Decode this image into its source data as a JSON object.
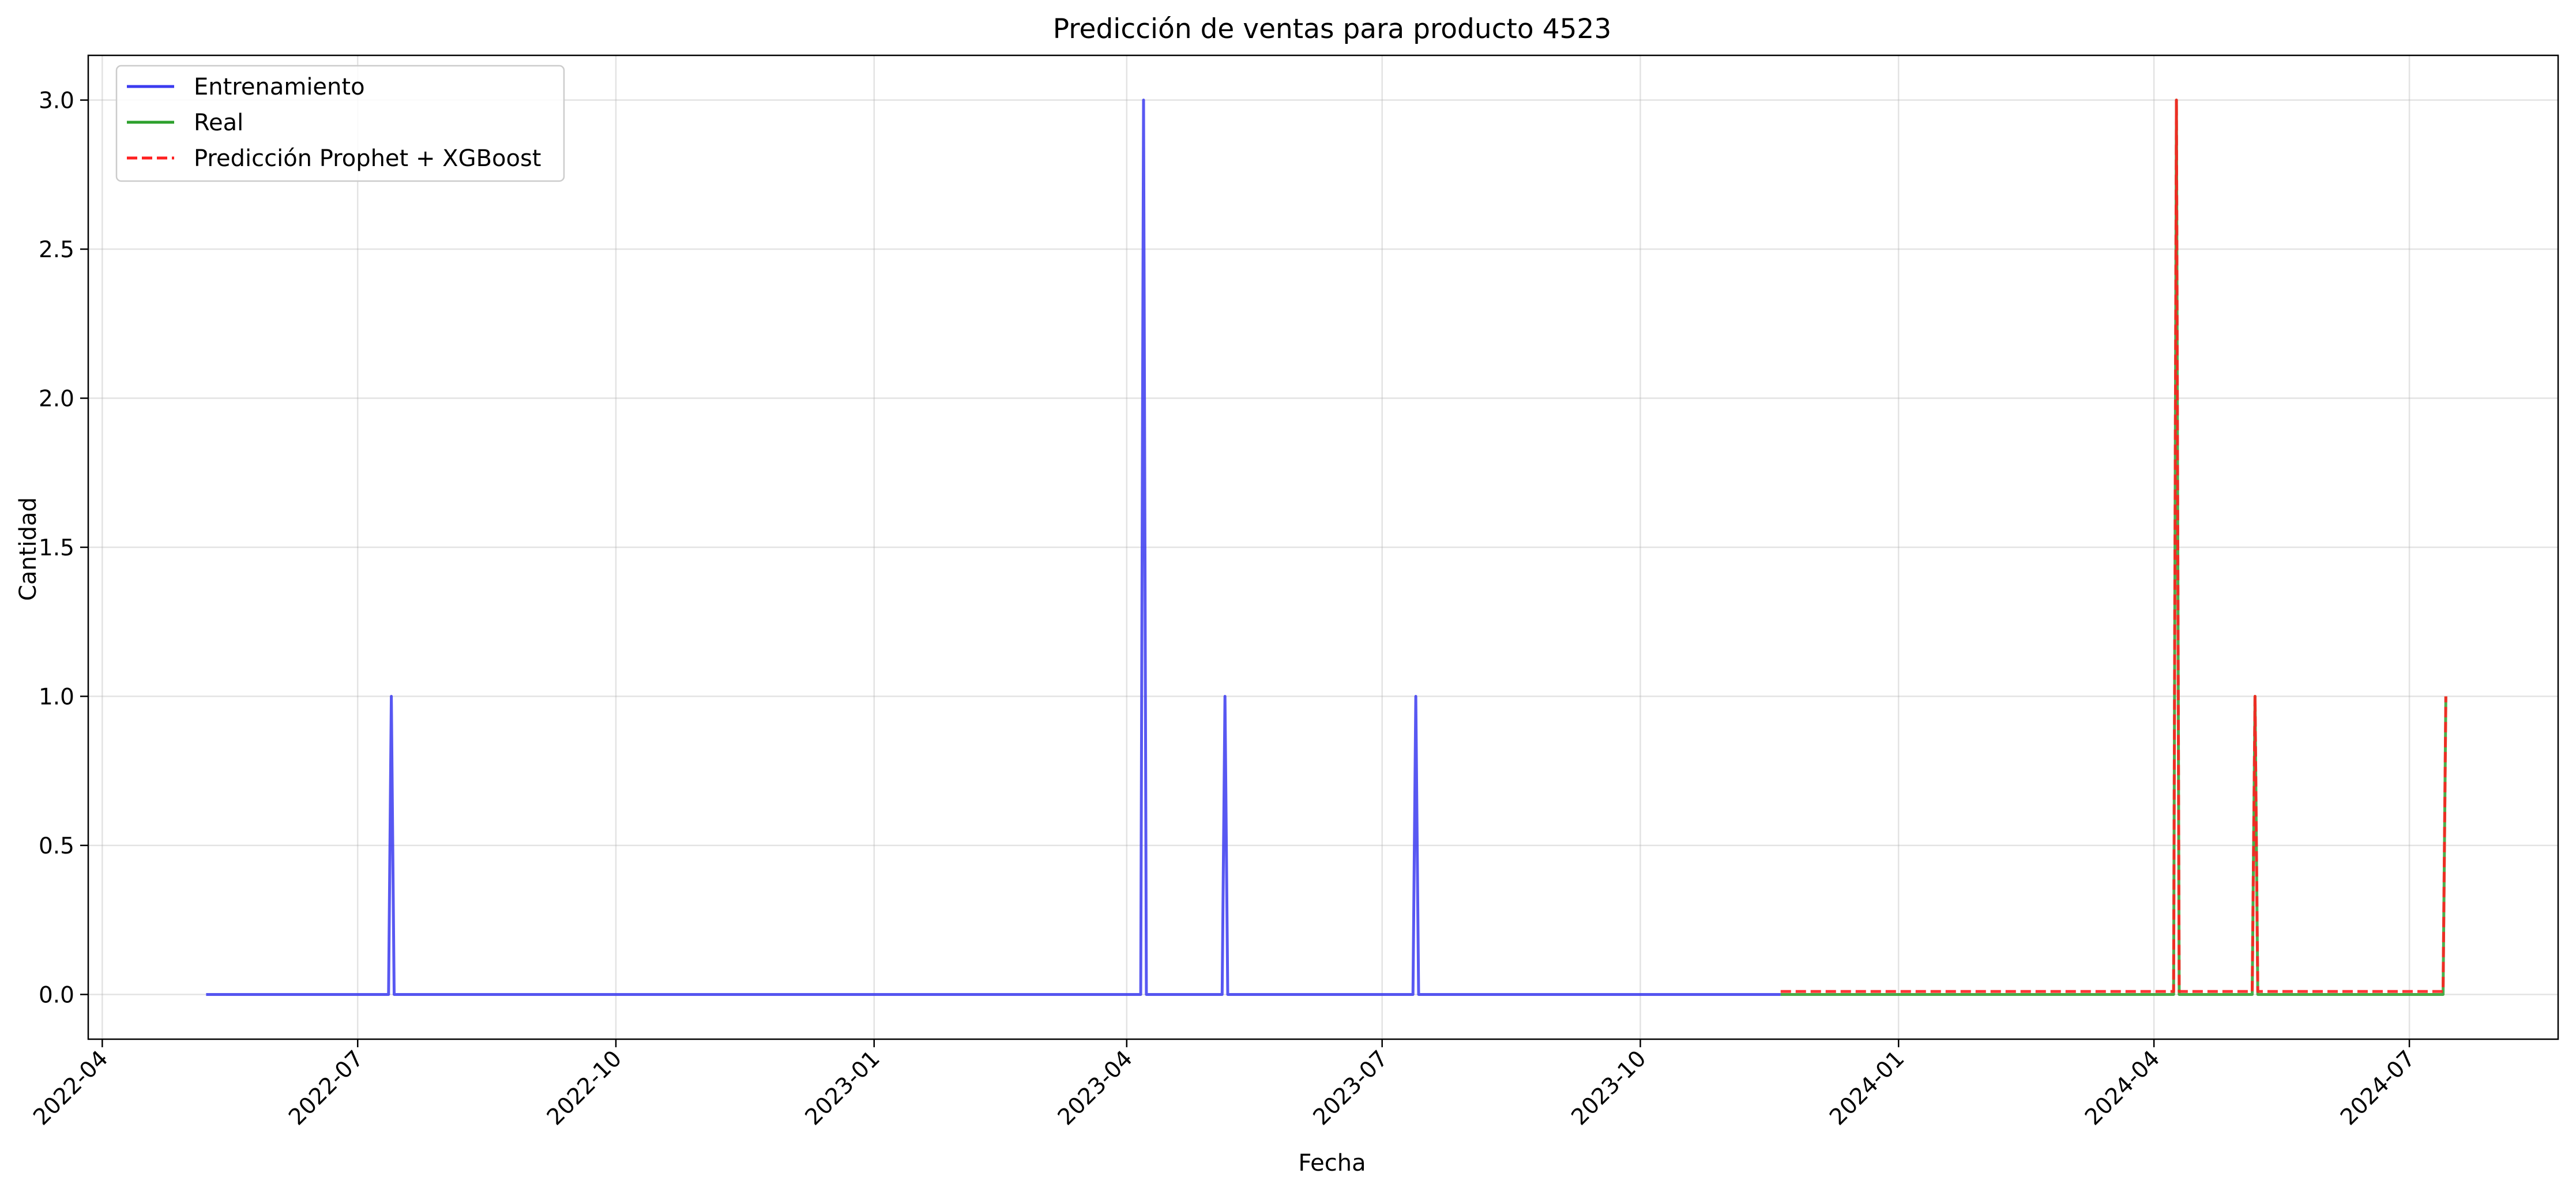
{
  "chart_data": {
    "type": "line",
    "title": "Predicción de ventas para producto 4523",
    "xlabel": "Fecha",
    "ylabel": "Cantidad",
    "x_scale": "date",
    "xlim": [
      "2022-03-27",
      "2024-08-23"
    ],
    "ylim": [
      -0.15,
      3.15
    ],
    "grid": true,
    "legend_position": "top-left",
    "x_ticks": [
      {
        "date": "2022-04-01",
        "label": "2022-04"
      },
      {
        "date": "2022-07-01",
        "label": "2022-07"
      },
      {
        "date": "2022-10-01",
        "label": "2022-10"
      },
      {
        "date": "2023-01-01",
        "label": "2023-01"
      },
      {
        "date": "2023-04-01",
        "label": "2023-04"
      },
      {
        "date": "2023-07-01",
        "label": "2023-07"
      },
      {
        "date": "2023-10-01",
        "label": "2023-10"
      },
      {
        "date": "2024-01-01",
        "label": "2024-01"
      },
      {
        "date": "2024-04-01",
        "label": "2024-04"
      },
      {
        "date": "2024-07-01",
        "label": "2024-07"
      }
    ],
    "y_ticks": [
      {
        "value": 0.0,
        "label": "0.0"
      },
      {
        "value": 0.5,
        "label": "0.5"
      },
      {
        "value": 1.0,
        "label": "1.0"
      },
      {
        "value": 1.5,
        "label": "1.5"
      },
      {
        "value": 2.0,
        "label": "2.0"
      },
      {
        "value": 2.5,
        "label": "2.5"
      },
      {
        "value": 3.0,
        "label": "3.0"
      }
    ],
    "series": [
      {
        "name": "Entrenamiento",
        "color": "#3b3bf0",
        "style": "solid",
        "points": [
          [
            "2022-05-08",
            0
          ],
          [
            "2022-07-12",
            0
          ],
          [
            "2022-07-13",
            1
          ],
          [
            "2022-07-14",
            0
          ],
          [
            "2023-04-06",
            0
          ],
          [
            "2023-04-07",
            3
          ],
          [
            "2023-04-08",
            0
          ],
          [
            "2023-05-05",
            0
          ],
          [
            "2023-05-06",
            1
          ],
          [
            "2023-05-07",
            0
          ],
          [
            "2023-07-12",
            0
          ],
          [
            "2023-07-13",
            1
          ],
          [
            "2023-07-14",
            0
          ],
          [
            "2023-11-20",
            0
          ]
        ]
      },
      {
        "name": "Real",
        "color": "#2ca02c",
        "style": "solid",
        "points": [
          [
            "2023-11-20",
            0
          ],
          [
            "2024-04-08",
            0
          ],
          [
            "2024-04-09",
            3
          ],
          [
            "2024-04-10",
            0
          ],
          [
            "2024-05-06",
            0
          ],
          [
            "2024-05-07",
            1
          ],
          [
            "2024-05-08",
            0
          ],
          [
            "2024-07-13",
            0
          ],
          [
            "2024-07-14",
            1
          ]
        ]
      },
      {
        "name": "Predicción Prophet + XGBoost",
        "color": "#ff2020",
        "style": "dashed",
        "points": [
          [
            "2023-11-20",
            0.01
          ],
          [
            "2024-04-08",
            0.01
          ],
          [
            "2024-04-09",
            3
          ],
          [
            "2024-04-10",
            0.01
          ],
          [
            "2024-05-06",
            0.01
          ],
          [
            "2024-05-07",
            1
          ],
          [
            "2024-05-08",
            0.01
          ],
          [
            "2024-07-13",
            0.01
          ],
          [
            "2024-07-14",
            1
          ]
        ]
      }
    ]
  }
}
